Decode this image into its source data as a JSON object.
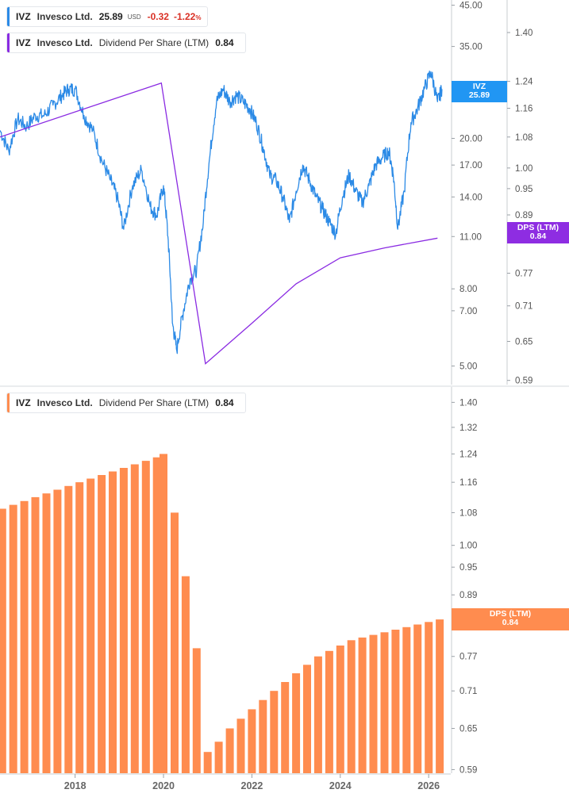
{
  "legends": {
    "price": {
      "ticker": "IVZ",
      "company": "Invesco Ltd.",
      "value": "25.89",
      "currency": "USD",
      "change": "-0.32",
      "change_pct": "-1.22",
      "pct_sign": "%"
    },
    "dps_top": {
      "ticker": "IVZ",
      "company": "Invesco Ltd.",
      "metric": "Dividend Per Share (LTM)",
      "value": "0.84"
    },
    "dps_bottom": {
      "ticker": "IVZ",
      "company": "Invesco Ltd.",
      "metric": "Dividend Per Share (LTM)",
      "value": "0.84"
    }
  },
  "tags": {
    "price": {
      "label": "IVZ",
      "value": "25.89"
    },
    "dps_top": {
      "label": "DPS (LTM)",
      "value": "0.84"
    },
    "dps_bottom": {
      "label": "DPS (LTM)",
      "value": "0.84"
    }
  },
  "colors": {
    "price_line": "#2b8ae6",
    "dps_line": "#8a2be2",
    "dps_bar": "#ff8c4f",
    "price_tag": "#2196f3",
    "dps_tag_top": "#8e2de2",
    "dps_tag_bottom": "#ff8c4f",
    "negative": "#d93025"
  },
  "chart_data": [
    {
      "type": "line",
      "series": [
        {
          "name": "IVZ",
          "axis": "left",
          "scale": "log",
          "x": [
            2016.3,
            2016.5,
            2016.7,
            2016.9,
            2017.1,
            2017.3,
            2017.5,
            2017.7,
            2017.85,
            2018.0,
            2018.2,
            2018.4,
            2018.6,
            2018.8,
            2018.95,
            2019.1,
            2019.3,
            2019.5,
            2019.7,
            2019.85,
            2020.0,
            2020.1,
            2020.2,
            2020.3,
            2020.45,
            2020.6,
            2020.75,
            2020.9,
            2021.05,
            2021.2,
            2021.35,
            2021.5,
            2021.65,
            2021.8,
            2021.95,
            2022.1,
            2022.25,
            2022.4,
            2022.55,
            2022.7,
            2022.85,
            2023.0,
            2023.15,
            2023.3,
            2023.45,
            2023.6,
            2023.75,
            2023.9,
            2024.05,
            2024.2,
            2024.35,
            2024.5,
            2024.65,
            2024.8,
            2024.95,
            2025.1,
            2025.2,
            2025.3,
            2025.45,
            2025.6,
            2025.75,
            2025.9,
            2026.05,
            2026.2,
            2026.3
          ],
          "y": [
            21,
            18.5,
            22.5,
            21.5,
            23,
            23,
            24.5,
            26,
            27,
            27,
            23,
            21,
            17.5,
            15.5,
            14,
            11.5,
            15,
            16.5,
            13.2,
            12.5,
            15,
            11,
            6.5,
            5.5,
            7,
            8.5,
            9,
            12,
            18,
            25,
            27,
            25,
            26,
            25,
            24,
            22,
            19,
            16,
            15.5,
            14,
            12,
            14.5,
            17,
            15.5,
            14,
            13,
            12,
            11.2,
            14,
            16,
            14.5,
            13.5,
            15,
            17,
            17.8,
            18.5,
            16,
            11.5,
            14.5,
            22,
            24,
            27,
            30,
            25,
            27
          ]
        },
        {
          "name": "DPS (LTM)",
          "axis": "right",
          "scale": "log",
          "x": [
            2016.3,
            2019.95,
            2020.95,
            2022.0,
            2023.0,
            2024.0,
            2025.0,
            2026.2
          ],
          "y": [
            1.08,
            1.235,
            0.615,
            0.68,
            0.75,
            0.8,
            0.82,
            0.84
          ]
        }
      ],
      "left_axis_ticks": [
        5.0,
        7.0,
        8.0,
        11.0,
        14.0,
        17.0,
        20.0,
        35.0,
        45.0
      ],
      "left_axis_ticks_labels": [
        "5.00",
        "7.00",
        "8.00",
        "11.00",
        "14.00",
        "17.00",
        "20.00",
        "35.00",
        "45.00"
      ],
      "right_axis_ticks": [
        0.59,
        0.65,
        0.71,
        0.77,
        0.89,
        0.95,
        1.0,
        1.08,
        1.16,
        1.24,
        1.4
      ],
      "right_axis_ticks_labels": [
        "0.59",
        "0.65",
        "0.71",
        "0.77",
        "0.89",
        "0.95",
        "1.00",
        "1.08",
        "1.16",
        "1.24",
        "1.40"
      ],
      "xlim": [
        2016.3,
        2026.5
      ],
      "ylim_left": [
        4.8,
        46
      ],
      "ylim_right": [
        0.585,
        1.5
      ]
    },
    {
      "type": "bar",
      "series": [
        {
          "name": "Dividend Per Share (LTM)",
          "x": [
            2016.35,
            2016.6,
            2016.85,
            2017.1,
            2017.35,
            2017.6,
            2017.85,
            2018.1,
            2018.35,
            2018.6,
            2018.85,
            2019.1,
            2019.35,
            2019.6,
            2019.85,
            2020.0,
            2020.25,
            2020.5,
            2020.75,
            2021.0,
            2021.25,
            2021.5,
            2021.75,
            2022.0,
            2022.25,
            2022.5,
            2022.75,
            2023.0,
            2023.25,
            2023.5,
            2023.75,
            2024.0,
            2024.25,
            2024.5,
            2024.75,
            2025.0,
            2025.25,
            2025.5,
            2025.75,
            2026.0,
            2026.25
          ],
          "values": [
            1.09,
            1.1,
            1.11,
            1.12,
            1.13,
            1.14,
            1.15,
            1.16,
            1.17,
            1.18,
            1.19,
            1.2,
            1.21,
            1.22,
            1.23,
            1.24,
            1.08,
            0.93,
            0.785,
            0.615,
            0.63,
            0.65,
            0.665,
            0.68,
            0.695,
            0.71,
            0.725,
            0.74,
            0.755,
            0.77,
            0.78,
            0.79,
            0.8,
            0.805,
            0.81,
            0.815,
            0.82,
            0.825,
            0.83,
            0.835,
            0.84
          ]
        }
      ],
      "y_axis_ticks": [
        0.59,
        0.65,
        0.71,
        0.77,
        0.89,
        0.95,
        1.0,
        1.08,
        1.16,
        1.24,
        1.32,
        1.4
      ],
      "y_axis_ticks_labels": [
        "0.59",
        "0.65",
        "0.71",
        "0.77",
        "0.89",
        "0.95",
        "1.00",
        "1.08",
        "1.16",
        "1.24",
        "1.32",
        "1.40"
      ],
      "x_ticks": [
        2018,
        2020,
        2022,
        2024,
        2026
      ],
      "x_ticks_labels": [
        "2018",
        "2020",
        "2022",
        "2024",
        "2026"
      ],
      "xlim": [
        2016.3,
        2026.5
      ],
      "ylim": [
        0.585,
        1.43
      ]
    }
  ]
}
